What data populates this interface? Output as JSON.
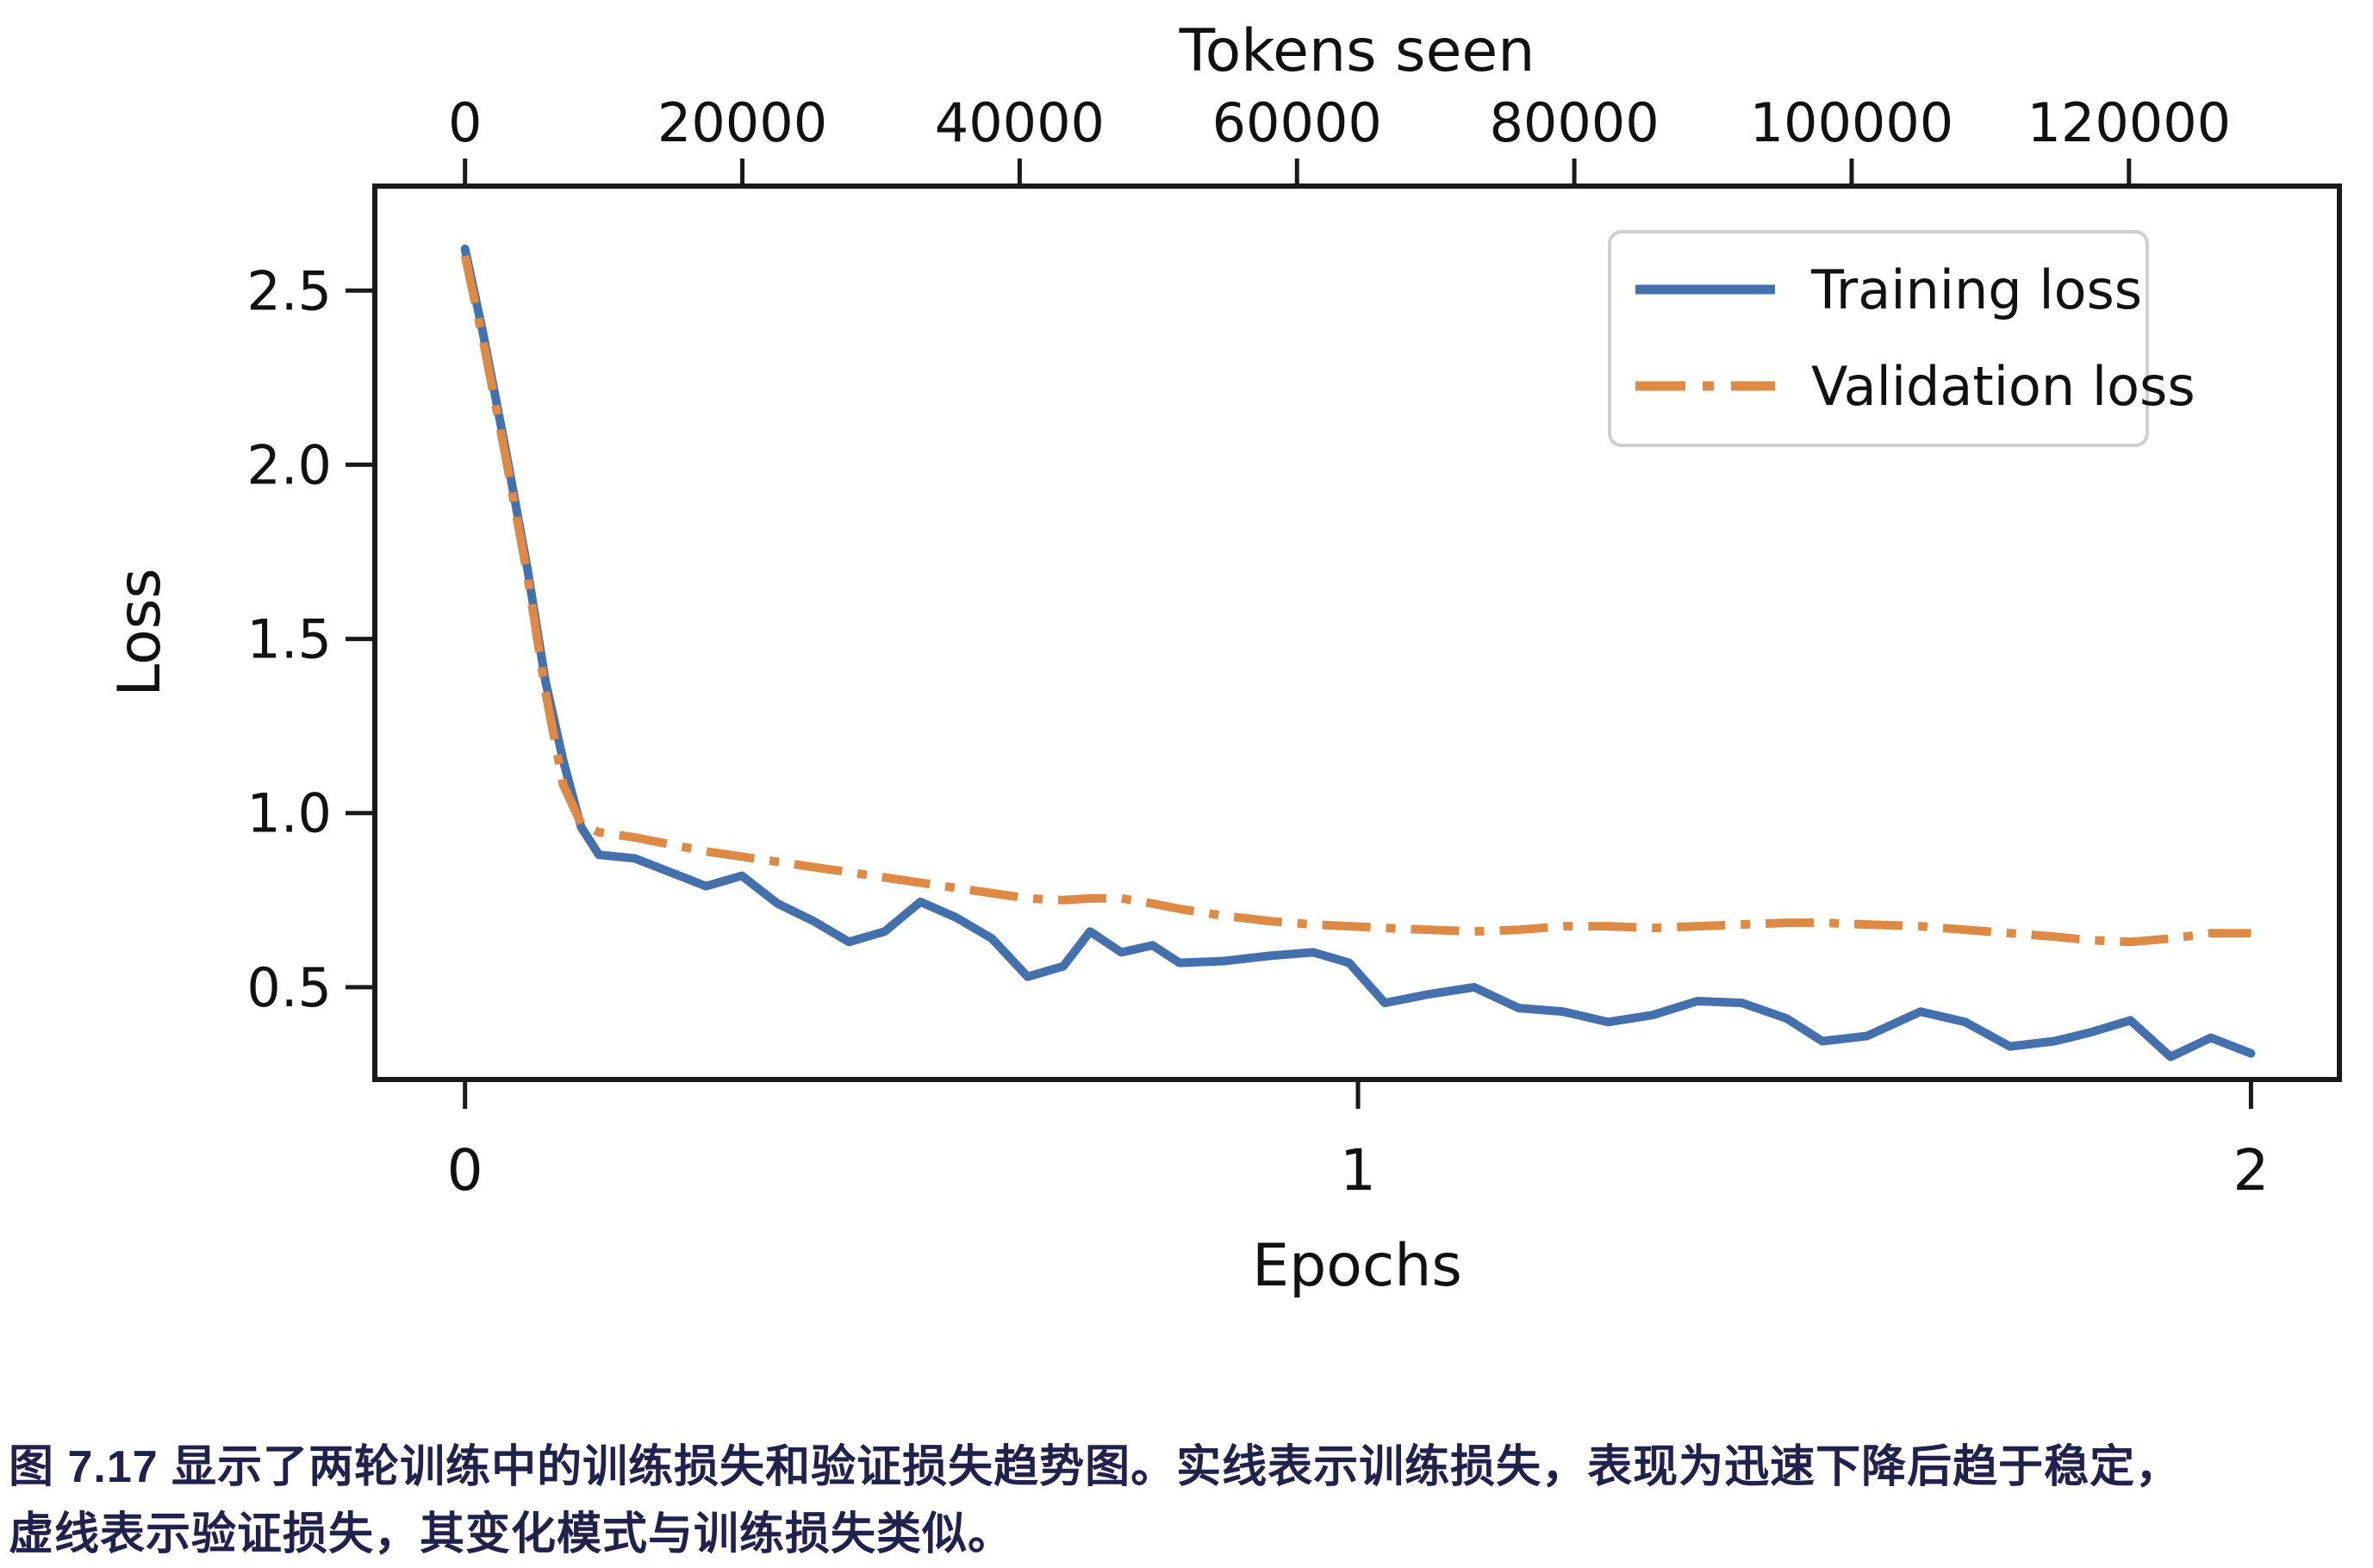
{
  "background": "#ffffff",
  "chart_data": {
    "type": "line",
    "top_axis": {
      "title": "Tokens seen",
      "tick_values": [
        0,
        20000,
        40000,
        60000,
        80000,
        100000,
        120000
      ],
      "tick_labels": [
        "0",
        "20000",
        "40000",
        "60000",
        "80000",
        "100000",
        "120000"
      ],
      "tokens_per_epoch": 64400
    },
    "x_axis": {
      "title": "Epochs",
      "tick_values": [
        0,
        1,
        2
      ],
      "tick_labels": [
        "0",
        "1",
        "2"
      ],
      "range": [
        -0.101,
        2.099
      ]
    },
    "y_axis": {
      "title": "Loss",
      "tick_values": [
        0.5,
        1.0,
        1.5,
        2.0,
        2.5
      ],
      "tick_labels": [
        "0.5",
        "1.0",
        "1.5",
        "2.0",
        "2.5"
      ],
      "range": [
        0.235,
        2.8
      ]
    },
    "grid": false,
    "legend_position": "upper right",
    "frame_color": "#1a1a1a",
    "series": [
      {
        "name": "Training loss",
        "color": "#4470ad",
        "style": "solid",
        "points": [
          [
            0,
            2.62
          ],
          [
            0.02,
            2.38
          ],
          [
            0.045,
            2.05
          ],
          [
            0.07,
            1.7
          ],
          [
            0.09,
            1.38
          ],
          [
            0.11,
            1.15
          ],
          [
            0.13,
            0.96
          ],
          [
            0.15,
            0.88
          ],
          [
            0.19,
            0.87
          ],
          [
            0.23,
            0.83
          ],
          [
            0.27,
            0.79
          ],
          [
            0.31,
            0.82
          ],
          [
            0.35,
            0.74
          ],
          [
            0.39,
            0.69
          ],
          [
            0.43,
            0.63
          ],
          [
            0.47,
            0.66
          ],
          [
            0.51,
            0.745
          ],
          [
            0.55,
            0.7
          ],
          [
            0.59,
            0.64
          ],
          [
            0.63,
            0.53
          ],
          [
            0.67,
            0.56
          ],
          [
            0.7,
            0.66
          ],
          [
            0.735,
            0.6
          ],
          [
            0.77,
            0.62
          ],
          [
            0.8,
            0.57
          ],
          [
            0.85,
            0.575
          ],
          [
            0.9,
            0.59
          ],
          [
            0.95,
            0.6
          ],
          [
            0.99,
            0.57
          ],
          [
            1.03,
            0.455
          ],
          [
            1.08,
            0.48
          ],
          [
            1.13,
            0.5
          ],
          [
            1.18,
            0.44
          ],
          [
            1.23,
            0.43
          ],
          [
            1.28,
            0.4
          ],
          [
            1.33,
            0.42
          ],
          [
            1.38,
            0.46
          ],
          [
            1.43,
            0.455
          ],
          [
            1.48,
            0.41
          ],
          [
            1.52,
            0.345
          ],
          [
            1.57,
            0.36
          ],
          [
            1.63,
            0.43
          ],
          [
            1.68,
            0.4
          ],
          [
            1.73,
            0.33
          ],
          [
            1.78,
            0.345
          ],
          [
            1.82,
            0.37
          ],
          [
            1.865,
            0.405
          ],
          [
            1.91,
            0.3
          ],
          [
            1.955,
            0.355
          ],
          [
            2,
            0.31
          ]
        ]
      },
      {
        "name": "Validation loss",
        "color": "#de8a45",
        "style": "dashdot",
        "points": [
          [
            0,
            2.6
          ],
          [
            0.02,
            2.36
          ],
          [
            0.045,
            2.03
          ],
          [
            0.07,
            1.68
          ],
          [
            0.09,
            1.35
          ],
          [
            0.11,
            1.08
          ],
          [
            0.13,
            0.97
          ],
          [
            0.15,
            0.945
          ],
          [
            0.19,
            0.93
          ],
          [
            0.23,
            0.91
          ],
          [
            0.27,
            0.89
          ],
          [
            0.31,
            0.875
          ],
          [
            0.35,
            0.86
          ],
          [
            0.39,
            0.845
          ],
          [
            0.43,
            0.83
          ],
          [
            0.47,
            0.815
          ],
          [
            0.51,
            0.8
          ],
          [
            0.55,
            0.785
          ],
          [
            0.59,
            0.77
          ],
          [
            0.63,
            0.755
          ],
          [
            0.67,
            0.75
          ],
          [
            0.7,
            0.755
          ],
          [
            0.735,
            0.755
          ],
          [
            0.77,
            0.74
          ],
          [
            0.8,
            0.725
          ],
          [
            0.85,
            0.705
          ],
          [
            0.9,
            0.69
          ],
          [
            0.95,
            0.68
          ],
          [
            0.99,
            0.675
          ],
          [
            1.03,
            0.67
          ],
          [
            1.08,
            0.665
          ],
          [
            1.13,
            0.66
          ],
          [
            1.18,
            0.665
          ],
          [
            1.23,
            0.675
          ],
          [
            1.28,
            0.675
          ],
          [
            1.33,
            0.67
          ],
          [
            1.38,
            0.675
          ],
          [
            1.43,
            0.68
          ],
          [
            1.48,
            0.685
          ],
          [
            1.52,
            0.685
          ],
          [
            1.57,
            0.68
          ],
          [
            1.63,
            0.675
          ],
          [
            1.68,
            0.665
          ],
          [
            1.73,
            0.655
          ],
          [
            1.78,
            0.645
          ],
          [
            1.82,
            0.635
          ],
          [
            1.865,
            0.63
          ],
          [
            1.91,
            0.64
          ],
          [
            1.955,
            0.655
          ],
          [
            2,
            0.655
          ]
        ]
      }
    ]
  },
  "caption": {
    "line1": "图 7.17 显示了两轮训练中的训练损失和验证损失趋势图。实线表示训练损失，表现为迅速下降后趋于稳定，",
    "line2": "虚线表示验证损失，其变化模式与训练损失类似。"
  }
}
